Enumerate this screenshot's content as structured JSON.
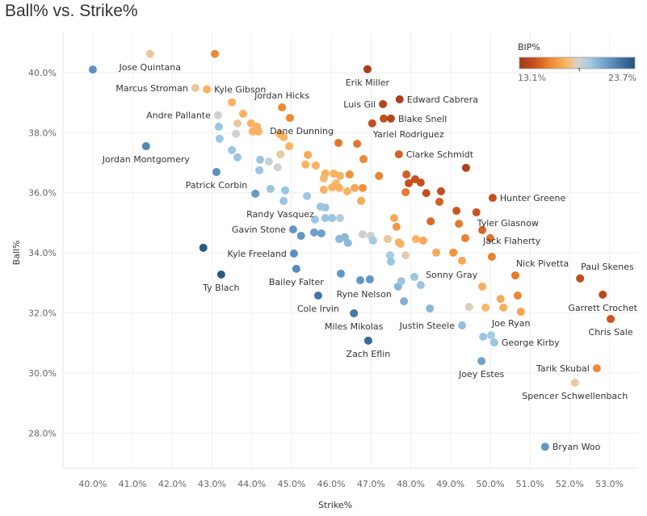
{
  "chart_data": {
    "type": "scatter",
    "title": "Ball% vs. Strike%",
    "xlabel": "Strike%",
    "ylabel": "Ball%",
    "xlim": [
      39.25,
      53.72
    ],
    "ylim": [
      26.83,
      41.34
    ],
    "x_ticks": [
      "40.0%",
      "41.0%",
      "42.0%",
      "43.0%",
      "44.0%",
      "45.0%",
      "46.0%",
      "47.0%",
      "48.0%",
      "49.0%",
      "50.0%",
      "51.0%",
      "52.0%",
      "53.0%"
    ],
    "x_tick_values": [
      40,
      41,
      42,
      43,
      44,
      45,
      46,
      47,
      48,
      49,
      50,
      51,
      52,
      53
    ],
    "y_ticks": [
      "28.0%",
      "30.0%",
      "32.0%",
      "34.0%",
      "36.0%",
      "38.0%",
      "40.0%"
    ],
    "y_tick_values": [
      28,
      30,
      32,
      34,
      36,
      38,
      40
    ],
    "grid": true,
    "legend": {
      "title": "BIP%",
      "min_label": "13.1%",
      "max_label": "23.7%",
      "min": 13.1,
      "max": 23.7,
      "marker": 18.6,
      "placement": "top-right"
    },
    "color_stops": [
      [
        13.1,
        "#9b3a1f"
      ],
      [
        14.5,
        "#c9511d"
      ],
      [
        16,
        "#ee8a34"
      ],
      [
        17.4,
        "#fbb566"
      ],
      [
        18.1,
        "#e8cba6"
      ],
      [
        18.6,
        "#cfd2cf"
      ],
      [
        19.6,
        "#a2cbe4"
      ],
      [
        21.5,
        "#5b90c0"
      ],
      [
        23.7,
        "#234f7e"
      ]
    ],
    "columns": [
      "strike_pct",
      "ball_pct",
      "bip_pct",
      "pitcher"
    ],
    "points": [
      [
        40.0,
        40.1,
        21.5,
        ""
      ],
      [
        41.44,
        40.62,
        18.0,
        "Jose Quintana"
      ],
      [
        43.07,
        40.62,
        16.0,
        ""
      ],
      [
        46.91,
        40.11,
        13.5,
        "Erik Miller"
      ],
      [
        42.58,
        39.49,
        18.0,
        "Marcus Stroman"
      ],
      [
        42.87,
        39.44,
        17.3,
        "Kyle Gibson"
      ],
      [
        43.5,
        39.01,
        17.3,
        ""
      ],
      [
        44.76,
        38.84,
        16.0,
        "Jordan Hicks"
      ],
      [
        47.3,
        38.95,
        13.8,
        "Luis Gil"
      ],
      [
        47.72,
        39.11,
        13.5,
        "Edward Cabrera"
      ],
      [
        43.78,
        38.63,
        17.3,
        ""
      ],
      [
        43.15,
        38.58,
        18.6,
        "Andre Pallante"
      ],
      [
        44.96,
        38.49,
        16.0,
        ""
      ],
      [
        47.32,
        38.47,
        14.3,
        ""
      ],
      [
        47.5,
        38.47,
        13.8,
        "Blake Snell"
      ],
      [
        47.03,
        38.31,
        14.3,
        "Yariel Rodriguez"
      ],
      [
        43.64,
        38.31,
        18.0,
        ""
      ],
      [
        43.17,
        38.2,
        19.8,
        ""
      ],
      [
        43.98,
        38.31,
        17.3,
        ""
      ],
      [
        44.13,
        38.2,
        17.3,
        ""
      ],
      [
        44.02,
        38.04,
        17.3,
        ""
      ],
      [
        44.17,
        38.04,
        17.3,
        ""
      ],
      [
        43.6,
        37.96,
        18.6,
        ""
      ],
      [
        43.19,
        37.8,
        19.8,
        ""
      ],
      [
        44.7,
        37.96,
        17.3,
        ""
      ],
      [
        44.8,
        37.85,
        17.3,
        ""
      ],
      [
        44.94,
        37.55,
        17.3,
        ""
      ],
      [
        46.18,
        37.66,
        15.5,
        "Dane Dunning"
      ],
      [
        46.65,
        37.63,
        15.5,
        ""
      ],
      [
        46.81,
        37.12,
        16.0,
        ""
      ],
      [
        47.7,
        37.28,
        14.9,
        "Clarke Schmidt"
      ],
      [
        49.39,
        36.83,
        13.6,
        ""
      ],
      [
        41.34,
        37.55,
        21.8,
        "Jordan Montgomery"
      ],
      [
        43.5,
        37.42,
        19.8,
        ""
      ],
      [
        43.64,
        37.18,
        19.8,
        ""
      ],
      [
        44.21,
        37.1,
        19.8,
        ""
      ],
      [
        44.19,
        36.75,
        19.8,
        ""
      ],
      [
        44.43,
        37.04,
        18.8,
        ""
      ],
      [
        44.65,
        36.85,
        18.6,
        ""
      ],
      [
        44.72,
        37.28,
        18.0,
        ""
      ],
      [
        45.41,
        37.26,
        17.0,
        ""
      ],
      [
        45.35,
        36.94,
        17.3,
        ""
      ],
      [
        45.61,
        36.91,
        17.3,
        ""
      ],
      [
        43.11,
        36.69,
        21.5,
        "Patrick Corbin"
      ],
      [
        45.85,
        36.64,
        17.3,
        ""
      ],
      [
        46.06,
        36.64,
        17.3,
        ""
      ],
      [
        46.22,
        36.56,
        17.3,
        ""
      ],
      [
        45.81,
        36.48,
        17.5,
        ""
      ],
      [
        46.12,
        36.32,
        17.5,
        ""
      ],
      [
        46.46,
        36.61,
        16.2,
        ""
      ],
      [
        47.2,
        36.56,
        15.8,
        ""
      ],
      [
        47.89,
        36.61,
        14.9,
        ""
      ],
      [
        44.09,
        35.97,
        21.2,
        ""
      ],
      [
        44.47,
        36.13,
        19.8,
        ""
      ],
      [
        44.84,
        36.08,
        19.8,
        ""
      ],
      [
        44.8,
        35.73,
        19.8,
        ""
      ],
      [
        45.39,
        35.89,
        19.7,
        ""
      ],
      [
        45.81,
        36.1,
        17.3,
        ""
      ],
      [
        46.02,
        36.18,
        17.3,
        ""
      ],
      [
        46.2,
        36.16,
        17.3,
        ""
      ],
      [
        46.4,
        36.05,
        17.3,
        ""
      ],
      [
        46.59,
        36.16,
        17.0,
        ""
      ],
      [
        46.79,
        36.16,
        16.2,
        ""
      ],
      [
        46.75,
        35.73,
        17.0,
        ""
      ],
      [
        47.95,
        36.32,
        14.4,
        ""
      ],
      [
        48.11,
        36.45,
        14.4,
        ""
      ],
      [
        48.25,
        36.34,
        14.4,
        ""
      ],
      [
        47.87,
        36.02,
        15.6,
        ""
      ],
      [
        48.39,
        35.99,
        14.4,
        ""
      ],
      [
        48.76,
        36.05,
        14.4,
        ""
      ],
      [
        48.72,
        35.7,
        14.9,
        ""
      ],
      [
        50.06,
        35.83,
        14.4,
        "Hunter Greene"
      ],
      [
        45.73,
        35.54,
        19.8,
        "Randy Vasquez"
      ],
      [
        45.85,
        35.51,
        19.8,
        ""
      ],
      [
        45.59,
        35.11,
        19.8,
        ""
      ],
      [
        45.85,
        35.16,
        19.8,
        ""
      ],
      [
        46.02,
        35.16,
        19.8,
        ""
      ],
      [
        46.22,
        35.16,
        19.3,
        ""
      ],
      [
        45.04,
        34.78,
        21.3,
        "Gavin Stone"
      ],
      [
        45.24,
        34.57,
        21.3,
        ""
      ],
      [
        45.57,
        34.68,
        21.0,
        ""
      ],
      [
        45.75,
        34.65,
        21.0,
        ""
      ],
      [
        46.2,
        34.46,
        20.2,
        ""
      ],
      [
        46.34,
        34.52,
        20.2,
        ""
      ],
      [
        46.42,
        34.33,
        20.2,
        ""
      ],
      [
        46.79,
        34.62,
        18.7,
        ""
      ],
      [
        46.99,
        34.57,
        18.7,
        ""
      ],
      [
        47.05,
        34.41,
        19.6,
        ""
      ],
      [
        47.58,
        35.16,
        17.0,
        ""
      ],
      [
        47.64,
        34.87,
        16.4,
        ""
      ],
      [
        48.5,
        35.05,
        15.2,
        ""
      ],
      [
        49.15,
        35.4,
        14.6,
        ""
      ],
      [
        49.65,
        35.35,
        14.6,
        "Tyler Glasnow"
      ],
      [
        49.21,
        34.97,
        15.6,
        ""
      ],
      [
        49.8,
        34.76,
        15.0,
        "Jack Flaherty"
      ],
      [
        49.37,
        34.49,
        15.8,
        ""
      ],
      [
        50.0,
        34.49,
        15.4,
        ""
      ],
      [
        47.42,
        34.46,
        18.0,
        ""
      ],
      [
        47.7,
        34.35,
        17.3,
        ""
      ],
      [
        47.74,
        34.3,
        17.3,
        ""
      ],
      [
        48.13,
        34.46,
        17.3,
        ""
      ],
      [
        48.31,
        34.41,
        17.0,
        ""
      ],
      [
        47.87,
        33.92,
        18.2,
        ""
      ],
      [
        47.48,
        33.92,
        19.6,
        ""
      ],
      [
        47.5,
        33.71,
        19.8,
        ""
      ],
      [
        48.64,
        34.01,
        17.0,
        ""
      ],
      [
        49.07,
        34.01,
        16.3,
        ""
      ],
      [
        49.29,
        33.74,
        17.0,
        ""
      ],
      [
        50.04,
        33.87,
        15.8,
        ""
      ],
      [
        42.78,
        34.17,
        23.4,
        ""
      ],
      [
        43.23,
        33.28,
        23.4,
        "Ty Blach"
      ],
      [
        45.06,
        33.98,
        21.5,
        "Kyle Freeland"
      ],
      [
        45.12,
        33.47,
        21.7,
        "Bailey Falter"
      ],
      [
        45.67,
        32.58,
        22.4,
        "Cole Irvin"
      ],
      [
        46.24,
        33.31,
        21.3,
        ""
      ],
      [
        46.73,
        33.09,
        21.3,
        ""
      ],
      [
        46.97,
        33.12,
        21.3,
        ""
      ],
      [
        47.68,
        32.88,
        20.3,
        "Ryne Nelson"
      ],
      [
        47.76,
        33.06,
        19.8,
        ""
      ],
      [
        48.09,
        33.2,
        19.8,
        ""
      ],
      [
        48.25,
        32.93,
        19.8,
        ""
      ],
      [
        47.83,
        32.39,
        20.5,
        ""
      ],
      [
        46.57,
        31.99,
        22.3,
        "Miles Mikolas"
      ],
      [
        46.93,
        31.08,
        22.8,
        "Zach Eflin"
      ],
      [
        48.48,
        32.15,
        20.2,
        ""
      ],
      [
        49.29,
        31.59,
        20.0,
        "Justin Steele"
      ],
      [
        49.8,
        32.88,
        17.2,
        "Sonny Gray"
      ],
      [
        49.47,
        32.2,
        18.4,
        ""
      ],
      [
        49.88,
        32.18,
        17.4,
        ""
      ],
      [
        50.26,
        32.47,
        17.0,
        ""
      ],
      [
        50.33,
        32.18,
        17.2,
        ""
      ],
      [
        50.63,
        33.25,
        15.6,
        "Nick Pivetta"
      ],
      [
        50.69,
        32.58,
        15.9,
        ""
      ],
      [
        50.77,
        32.04,
        16.8,
        ""
      ],
      [
        52.26,
        33.15,
        14.2,
        "Paul Skenes"
      ],
      [
        52.83,
        32.61,
        14.0,
        "Garrett Crochet"
      ],
      [
        53.03,
        31.8,
        14.6,
        "Chris Sale"
      ],
      [
        49.82,
        31.21,
        19.8,
        ""
      ],
      [
        50.02,
        31.26,
        19.6,
        "Joe Ryan"
      ],
      [
        50.1,
        31.02,
        19.8,
        "George Kirby"
      ],
      [
        49.78,
        30.4,
        21.0,
        "Joey Estes"
      ],
      [
        52.68,
        30.16,
        16.0,
        "Tarik Skubal"
      ],
      [
        52.13,
        29.68,
        18.1,
        "Spencer Schwellenbach"
      ],
      [
        51.38,
        27.55,
        21.3,
        "Bryan Woo"
      ]
    ]
  }
}
